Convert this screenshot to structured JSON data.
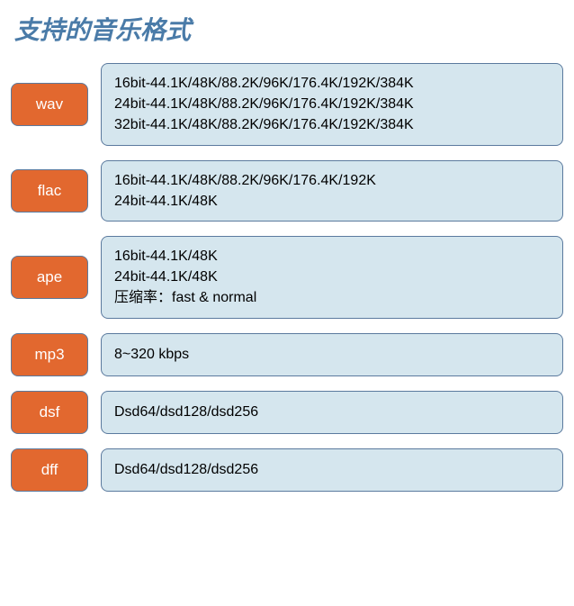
{
  "title": "支持的音乐格式",
  "colors": {
    "title_color": "#4a7ba8",
    "label_bg": "#e2682f",
    "label_text": "#ffffff",
    "detail_bg": "#d5e6ee",
    "border_color": "#5b7a9e",
    "detail_text": "#000000",
    "page_bg": "#ffffff"
  },
  "typography": {
    "title_fontsize": 28,
    "label_fontsize": 17,
    "detail_fontsize": 16,
    "font_family": "Microsoft YaHei"
  },
  "layout": {
    "label_width": 86,
    "label_height": 48,
    "border_radius": 8,
    "row_gap": 16,
    "item_gap": 14
  },
  "formats": [
    {
      "name": "wav",
      "details": [
        "16bit-44.1K/48K/88.2K/96K/176.4K/192K/384K",
        "24bit-44.1K/48K/88.2K/96K/176.4K/192K/384K",
        "32bit-44.1K/48K/88.2K/96K/176.4K/192K/384K"
      ]
    },
    {
      "name": "flac",
      "details": [
        "16bit-44.1K/48K/88.2K/96K/176.4K/192K",
        "24bit-44.1K/48K"
      ]
    },
    {
      "name": "ape",
      "details": [
        "16bit-44.1K/48K",
        "24bit-44.1K/48K",
        "压缩率：fast & normal"
      ]
    },
    {
      "name": "mp3",
      "details": [
        "8~320 kbps"
      ]
    },
    {
      "name": "dsf",
      "details": [
        "Dsd64/dsd128/dsd256"
      ]
    },
    {
      "name": "dff",
      "details": [
        "Dsd64/dsd128/dsd256"
      ]
    }
  ]
}
